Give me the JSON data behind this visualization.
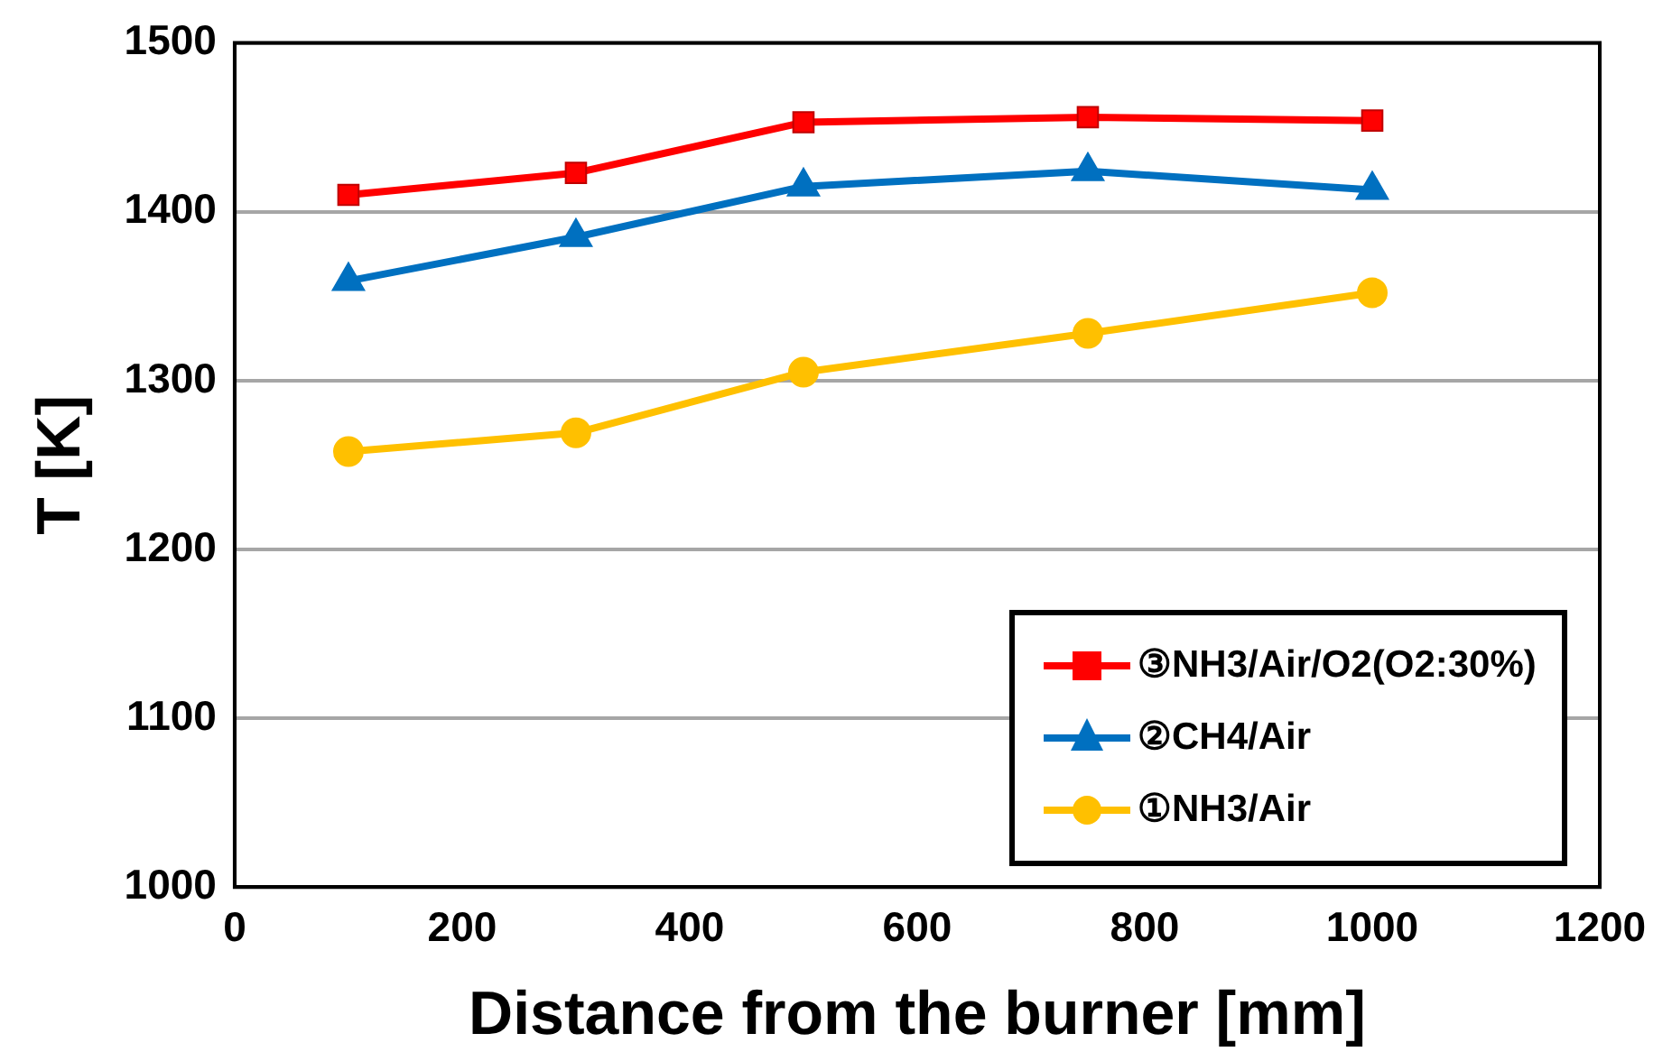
{
  "chart_data": {
    "type": "line",
    "xlabel": "Distance from the burner [mm]",
    "ylabel": "T [K]",
    "x": [
      100,
      300,
      500,
      750,
      1000
    ],
    "xlim": [
      0,
      1200
    ],
    "xticks": [
      0,
      200,
      400,
      600,
      800,
      1000,
      1200
    ],
    "ylim": [
      1000,
      1500
    ],
    "yticks": [
      1000,
      1100,
      1200,
      1300,
      1400,
      1500
    ],
    "grid": "y",
    "legend": "bottom right",
    "line_style": "solid",
    "series": [
      {
        "name": "③NH3/Air/O2(O2:30%)",
        "color": "#ff0000",
        "marker": "square",
        "values": [
          1410,
          1423,
          1453,
          1456,
          1454
        ]
      },
      {
        "name": "②CH4/Air",
        "color": "#0070c0",
        "marker": "triangle",
        "values": [
          1359,
          1385,
          1415,
          1424,
          1413
        ]
      },
      {
        "name": "①NH3/Air",
        "color": "#ffc000",
        "marker": "circle",
        "values": [
          1258,
          1269,
          1305,
          1328,
          1352
        ]
      }
    ]
  }
}
